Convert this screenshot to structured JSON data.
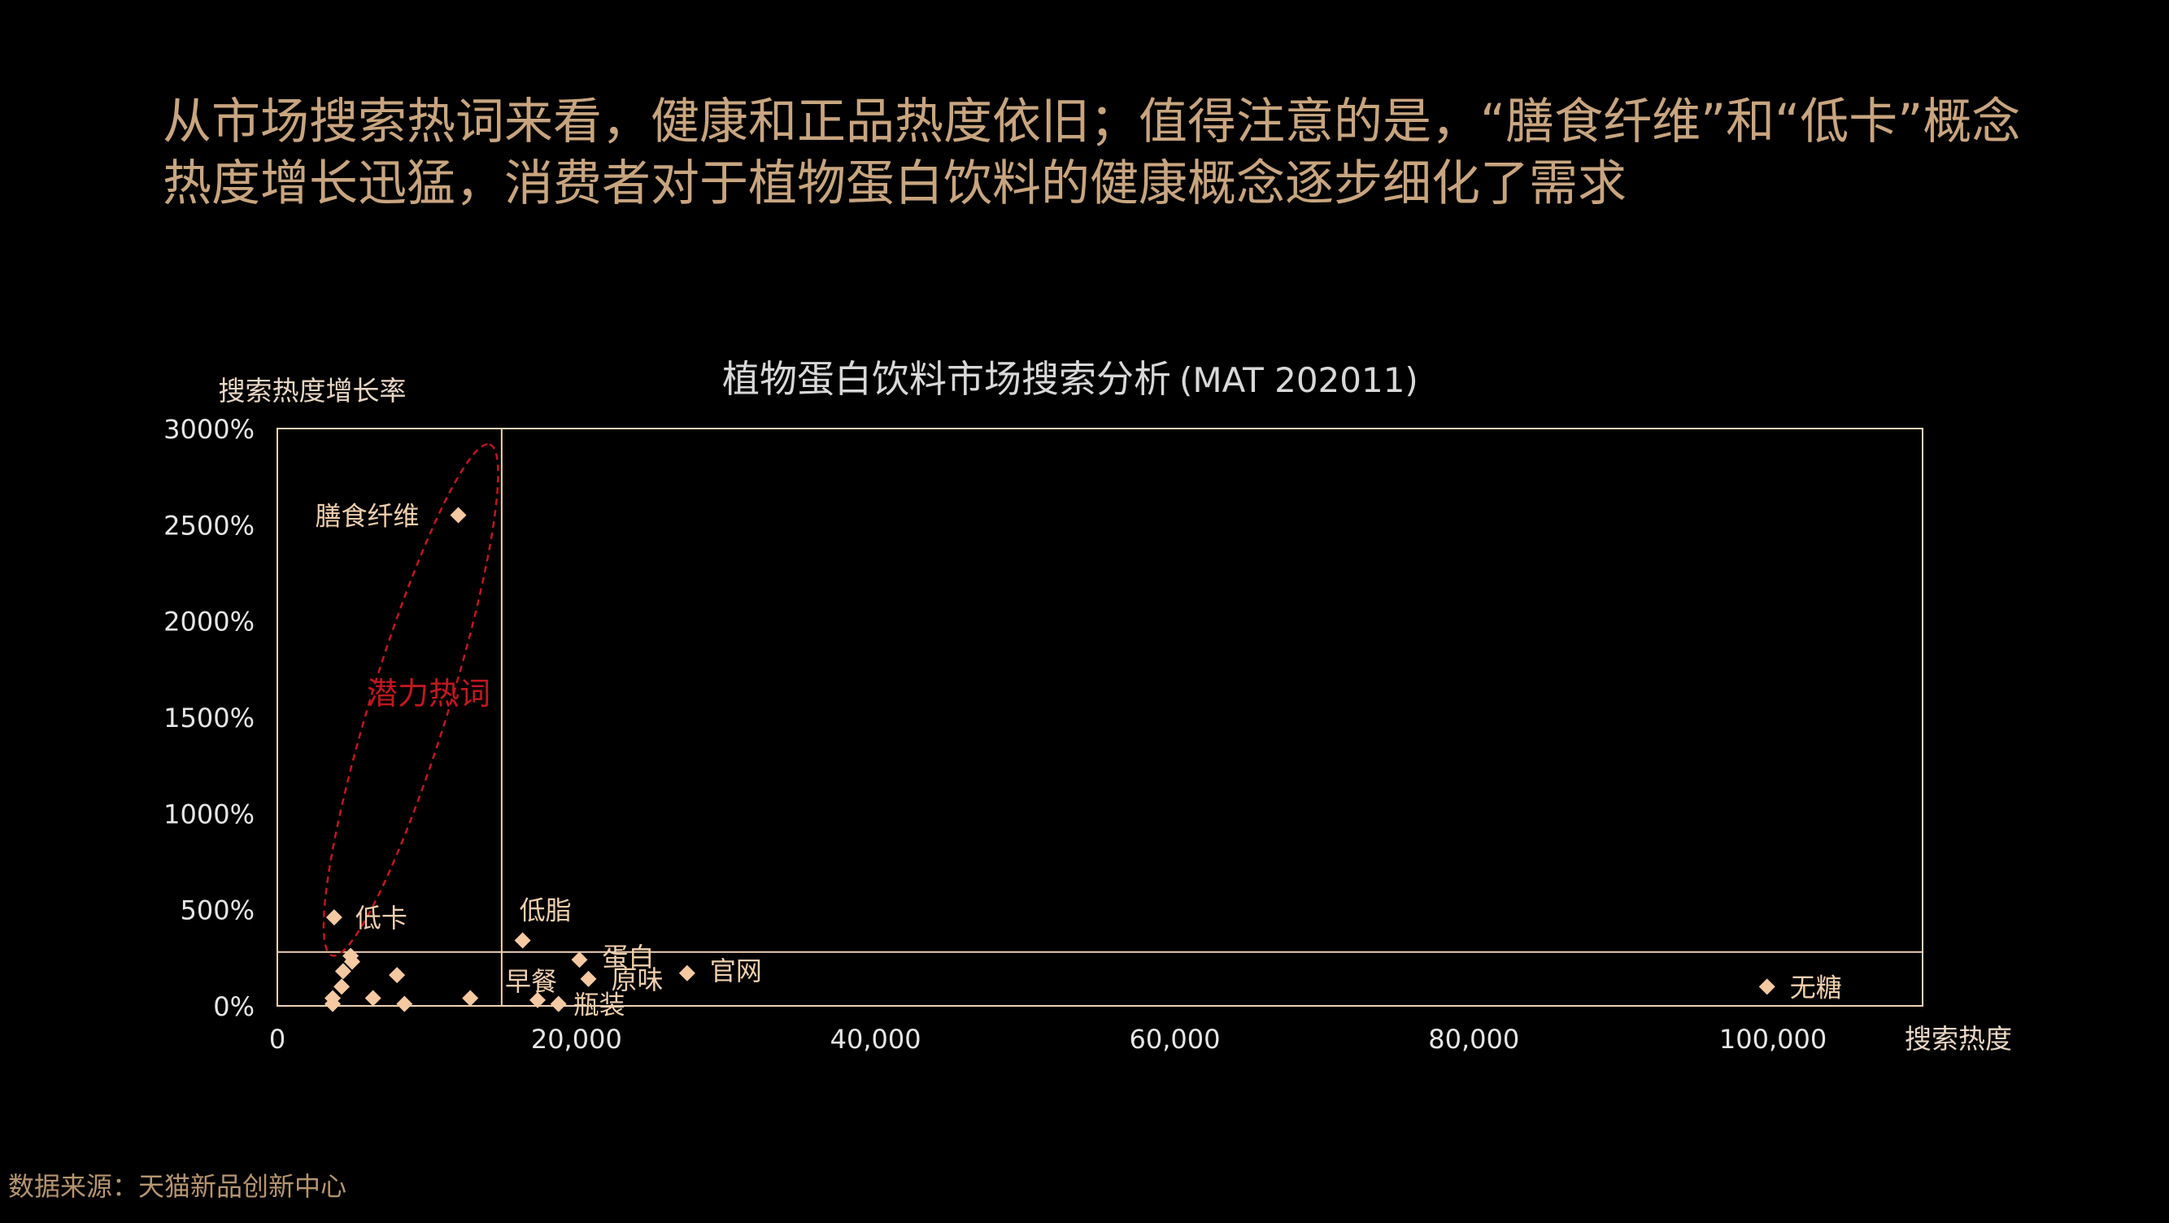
{
  "headline": "从市场搜索热词来看，健康和正品热度依旧；值得注意的是，“膳食纤维”和“低卡”概念热度增长迅猛，消费者对于植物蛋白饮料的健康概念逐步细化了需求",
  "source": "数据来源：天猫新品创新中心",
  "colors": {
    "background": "#000000",
    "headline": "#c8a57f",
    "axis": "#f0d2b4",
    "marker": "#f5c9a2",
    "highlight": "#c0181f"
  },
  "chart_data": {
    "type": "scatter",
    "title": "植物蛋白饮料市场搜索分析",
    "subtitle": "(MAT 202011)",
    "xlabel": "搜索热度",
    "ylabel": "搜索热度增长率",
    "xlim": [
      0,
      110000
    ],
    "ylim": [
      0,
      3000
    ],
    "x_ticks": [
      0,
      20000,
      40000,
      60000,
      80000,
      100000
    ],
    "x_tick_labels": [
      "0",
      "20,000",
      "40,000",
      "60,000",
      "80,000",
      "100,000"
    ],
    "y_ticks": [
      0,
      500,
      1000,
      1500,
      2000,
      2500,
      3000
    ],
    "y_tick_labels": [
      "0%",
      "500%",
      "1000%",
      "1500%",
      "2000%",
      "2500%",
      "3000%"
    ],
    "divider_x": 15000,
    "divider_y": 280,
    "highlight_label": "潜力热词",
    "points": [
      {
        "x": 12100,
        "y": 2550,
        "label": "膳食纤维"
      },
      {
        "x": 3800,
        "y": 460,
        "label": "低卡"
      },
      {
        "x": 16400,
        "y": 340,
        "label": "低脂"
      },
      {
        "x": 20200,
        "y": 240,
        "label": "蛋白"
      },
      {
        "x": 20800,
        "y": 140,
        "label": "原味"
      },
      {
        "x": 27400,
        "y": 170,
        "label": "官网"
      },
      {
        "x": 17400,
        "y": 30,
        "label": "早餐"
      },
      {
        "x": 18800,
        "y": 10,
        "label": "瓶装"
      },
      {
        "x": 99600,
        "y": 100,
        "label": "无糖"
      },
      {
        "x": 4900,
        "y": 260,
        "label": ""
      },
      {
        "x": 5000,
        "y": 230,
        "label": ""
      },
      {
        "x": 4400,
        "y": 180,
        "label": ""
      },
      {
        "x": 8000,
        "y": 160,
        "label": ""
      },
      {
        "x": 4300,
        "y": 100,
        "label": ""
      },
      {
        "x": 3700,
        "y": 40,
        "label": ""
      },
      {
        "x": 3700,
        "y": 10,
        "label": ""
      },
      {
        "x": 6400,
        "y": 40,
        "label": ""
      },
      {
        "x": 8500,
        "y": 10,
        "label": ""
      },
      {
        "x": 12900,
        "y": 40,
        "label": ""
      }
    ]
  }
}
